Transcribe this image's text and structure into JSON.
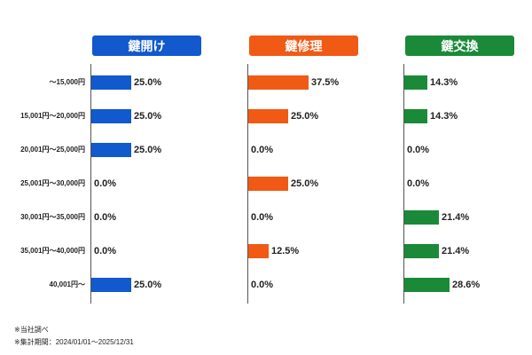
{
  "chart_data": [
    {
      "type": "bar",
      "title": "鍵開け",
      "color": "#1159cc",
      "categories": [
        "～15,000円",
        "15,001円～20,000円",
        "20,001円～25,000円",
        "25,001円～30,000円",
        "30,001円～35,000円",
        "35,001円～40,000円",
        "40,001円～"
      ],
      "values": [
        25.0,
        25.0,
        25.0,
        0.0,
        0.0,
        0.0,
        25.0
      ],
      "value_labels": [
        "25.0%",
        "25.0%",
        "25.0%",
        "0.0%",
        "0.0%",
        "0.0%",
        "25.0%"
      ]
    },
    {
      "type": "bar",
      "title": "鍵修理",
      "color": "#f05a14",
      "categories": [
        "～15,000円",
        "15,001円～20,000円",
        "20,001円～25,000円",
        "25,001円～30,000円",
        "30,001円～35,000円",
        "35,001円～40,000円",
        "40,001円～"
      ],
      "values": [
        37.5,
        25.0,
        0.0,
        25.0,
        0.0,
        12.5,
        0.0
      ],
      "value_labels": [
        "37.5%",
        "25.0%",
        "0.0%",
        "25.0%",
        "0.0%",
        "12.5%",
        "0.0%"
      ]
    },
    {
      "type": "bar",
      "title": "鍵交換",
      "color": "#1a8a38",
      "categories": [
        "～15,000円",
        "15,001円～20,000円",
        "20,001円～25,000円",
        "25,001円～30,000円",
        "30,001円～35,000円",
        "35,001円～40,000円",
        "40,001円～"
      ],
      "values": [
        14.3,
        14.3,
        0.0,
        0.0,
        21.4,
        21.4,
        28.6
      ],
      "value_labels": [
        "14.3%",
        "14.3%",
        "0.0%",
        "0.0%",
        "21.4%",
        "21.4%",
        "28.6%"
      ]
    }
  ],
  "row_labels": [
    "～15,000円",
    "15,001円～20,000円",
    "20,001円～25,000円",
    "25,001円～30,000円",
    "30,001円～35,000円",
    "35,001円～40,000円",
    "40,001円～"
  ],
  "footnotes": {
    "source": "※当社調べ",
    "period": "※集計期間：2024/01/01～2025/12/31"
  }
}
